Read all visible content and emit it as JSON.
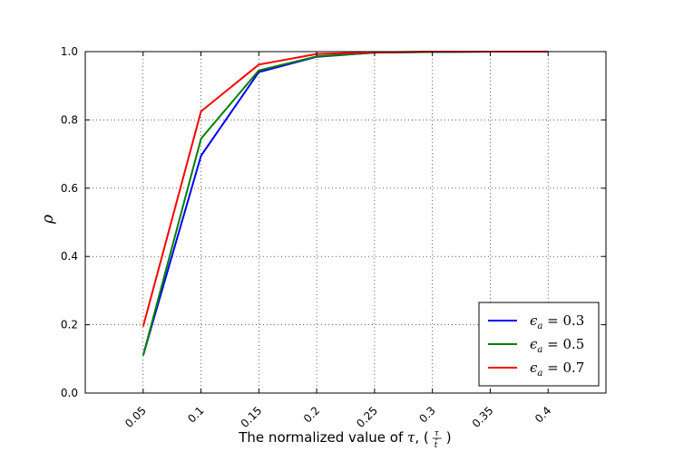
{
  "chart_data": {
    "type": "line",
    "xlabel": "The normalized value of τ, ( τ/t̂ )",
    "xlabel_main": "The normalized value of ",
    "xlabel_tau": "τ",
    "xlabel_paren_open": ", (",
    "xlabel_frac_num": "τ",
    "xlabel_frac_den": "t̂",
    "xlabel_paren_close": ")",
    "ylabel": "ρ",
    "x_ticks": [
      "0.05",
      "0.1",
      "0.15",
      "0.2",
      "0.25",
      "0.3",
      "0.35",
      "0.4"
    ],
    "y_ticks": [
      "0.0",
      "0.2",
      "0.4",
      "0.6",
      "0.8",
      "1.0"
    ],
    "x": [
      0.05,
      0.1,
      0.15,
      0.2,
      0.25,
      0.3,
      0.35,
      0.4
    ],
    "xlim": [
      0.0,
      0.45
    ],
    "ylim": [
      0.0,
      1.0
    ],
    "grid": true,
    "legend_position": "bottom-right",
    "series": [
      {
        "name": "ϵa = 0.3",
        "sym": "ϵ",
        "sub": "a",
        "eq": " = 0.3",
        "color": "#0000ff",
        "values": [
          0.11,
          0.695,
          0.94,
          0.985,
          0.997,
          0.999,
          1.0,
          1.0
        ]
      },
      {
        "name": "ϵa = 0.5",
        "sym": "ϵ",
        "sub": "a",
        "eq": " = 0.5",
        "color": "#008000",
        "values": [
          0.11,
          0.745,
          0.945,
          0.986,
          0.997,
          0.999,
          1.0,
          1.0
        ]
      },
      {
        "name": "ϵa = 0.7",
        "sym": "ϵ",
        "sub": "a",
        "eq": " = 0.7",
        "color": "#ff0000",
        "values": [
          0.195,
          0.825,
          0.962,
          0.993,
          0.998,
          1.0,
          1.0,
          1.0
        ]
      }
    ]
  }
}
